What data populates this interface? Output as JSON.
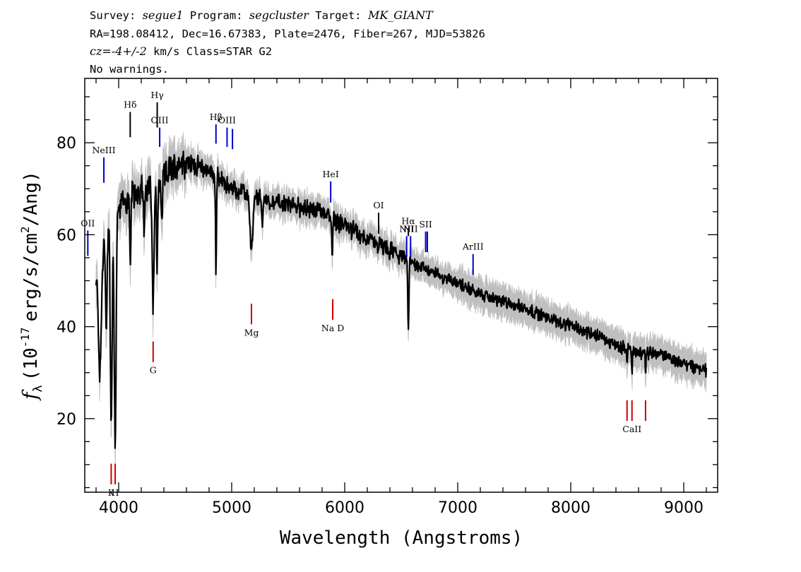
{
  "header": {
    "line1": {
      "survey_label": "Survey:",
      "survey": "segue1",
      "program_label": "Program:",
      "program": "segcluster",
      "target_label": "Target:",
      "target": "MK_GIANT"
    },
    "line2": "RA=198.08412, Dec=16.67383, Plate=2476, Fiber=267, MJD=53826",
    "line3": {
      "cz": "cz=-4+/-2",
      "rest": "km/s Class=STAR G2"
    },
    "line4": "No warnings."
  },
  "chart_data": {
    "type": "line",
    "xlabel": "Wavelength (Angstroms)",
    "ylabel": {
      "symbol": "f",
      "subscript": "λ",
      "pre": "(10",
      "exp": "-17",
      "post": "erg/s/cm",
      "exp2": "2",
      "tail": "/Ang)"
    },
    "xlim": [
      3700,
      9300
    ],
    "ylim": [
      4,
      94
    ],
    "x_ticks": [
      4000,
      5000,
      6000,
      7000,
      8000,
      9000
    ],
    "y_ticks": [
      20,
      40,
      60,
      80
    ],
    "x_tick_labels": [
      "4000",
      "5000",
      "6000",
      "7000",
      "8000",
      "9000"
    ],
    "y_tick_labels": [
      "20",
      "40",
      "60",
      "80"
    ],
    "x_minor_step": 200,
    "y_minor_step": 5,
    "spectrum_range": [
      3800,
      9200
    ],
    "spectrum_color": "#000000",
    "error_color": "#bfbfbf",
    "continuum_knots": [
      [
        3800,
        49
      ],
      [
        3850,
        56
      ],
      [
        3900,
        62
      ],
      [
        4000,
        66
      ],
      [
        4100,
        68
      ],
      [
        4200,
        70
      ],
      [
        4350,
        71
      ],
      [
        4450,
        74
      ],
      [
        4550,
        76
      ],
      [
        4700,
        75
      ],
      [
        4800,
        74
      ],
      [
        4900,
        72
      ],
      [
        5000,
        70
      ],
      [
        5200,
        68
      ],
      [
        5400,
        67
      ],
      [
        5600,
        66
      ],
      [
        5800,
        65
      ],
      [
        6000,
        62
      ],
      [
        6200,
        59
      ],
      [
        6400,
        56.5
      ],
      [
        6600,
        54
      ],
      [
        6800,
        51.5
      ],
      [
        7000,
        49.5
      ],
      [
        7200,
        47
      ],
      [
        7400,
        45.5
      ],
      [
        7600,
        44
      ],
      [
        7800,
        42
      ],
      [
        8000,
        40
      ],
      [
        8200,
        38.5
      ],
      [
        8400,
        36
      ],
      [
        8600,
        34.5
      ],
      [
        8800,
        34
      ],
      [
        9000,
        32
      ],
      [
        9200,
        30.5
      ]
    ],
    "absorption_features": [
      [
        3835,
        12,
        24
      ],
      [
        3890,
        7,
        22
      ],
      [
        3934,
        8,
        45
      ],
      [
        3969,
        8,
        50
      ],
      [
        4102,
        5,
        16
      ],
      [
        4227,
        6,
        10
      ],
      [
        4305,
        8,
        25
      ],
      [
        4340,
        5,
        20
      ],
      [
        4383,
        5,
        10
      ],
      [
        4861,
        4,
        22
      ],
      [
        5175,
        12,
        12
      ],
      [
        5270,
        5,
        5
      ],
      [
        5890,
        4,
        9
      ],
      [
        6563,
        5,
        15
      ],
      [
        8498,
        3,
        4
      ],
      [
        8542,
        3,
        6
      ],
      [
        8662,
        3,
        6
      ]
    ],
    "emission_lines": [
      {
        "label": "OII",
        "x": 3727,
        "y1": 55.4,
        "y2": 60.9,
        "color": "#0000cc"
      },
      {
        "label": "NeIII",
        "x": 3869,
        "y1": 71.3,
        "y2": 76.8,
        "color": "#0000cc"
      },
      {
        "label": "Hδ",
        "x": 4102,
        "y1": 81.2,
        "y2": 86.7,
        "color": "#000000"
      },
      {
        "label": "Hγ",
        "x": 4341,
        "y1": 83.3,
        "y2": 88.8,
        "color": "#000000"
      },
      {
        "label": "OIII",
        "x": 4363,
        "y1": 79.1,
        "y2": 83.3,
        "color": "#0000cc"
      },
      {
        "label": "Hβ",
        "x": 4861,
        "y1": 79.8,
        "y2": 84.0,
        "color": "#0000cc"
      },
      {
        "label": "OIII",
        "x": 4959,
        "y1": 79.1,
        "y2": 83.3,
        "color": "#0000cc"
      },
      {
        "label": "",
        "x": 5007,
        "y1": 78.6,
        "y2": 83.0,
        "color": "#0000cc"
      },
      {
        "label": "HeI",
        "x": 5876,
        "y1": 67.0,
        "y2": 71.6,
        "color": "#0000cc"
      },
      {
        "label": "OI",
        "x": 6300,
        "y1": 60.2,
        "y2": 64.8,
        "color": "#000000"
      },
      {
        "label": "NII",
        "x": 6548,
        "y1": 55.2,
        "y2": 59.7,
        "color": "#0000cc"
      },
      {
        "label": "Hα",
        "x": 6563,
        "y1": 59.7,
        "y2": 61.4,
        "color": "#000000"
      },
      {
        "label": "NII",
        "x": 6583,
        "y1": 55.2,
        "y2": 59.7,
        "color": "#0000cc"
      },
      {
        "label": "SII",
        "x": 6716,
        "y1": 56.2,
        "y2": 60.7,
        "color": "#0000cc"
      },
      {
        "label": "",
        "x": 6731,
        "y1": 56.2,
        "y2": 60.7,
        "color": "#0000cc"
      },
      {
        "label": "ArIII",
        "x": 7136,
        "y1": 51.3,
        "y2": 55.8,
        "color": "#0000cc"
      }
    ],
    "absorption_markers": [
      {
        "label": "K",
        "x": 3934,
        "y1": 5.7,
        "y2": 10.2,
        "color": "#cc0000"
      },
      {
        "label": "H",
        "x": 3969,
        "y1": 5.7,
        "y2": 10.2,
        "color": "#cc0000"
      },
      {
        "label": "G",
        "x": 4305,
        "y1": 32.3,
        "y2": 36.8,
        "color": "#cc0000"
      },
      {
        "label": "Mg",
        "x": 5175,
        "y1": 40.5,
        "y2": 45.0,
        "color": "#cc0000"
      },
      {
        "label": "Na D",
        "x": 5894,
        "y1": 41.5,
        "y2": 46.0,
        "color": "#cc0000"
      },
      {
        "label": "",
        "x": 8498,
        "y1": 19.5,
        "y2": 24.0,
        "color": "#cc0000"
      },
      {
        "label": "CaII",
        "x": 8542,
        "y1": 19.5,
        "y2": 24.0,
        "color": "#cc0000"
      },
      {
        "label": "",
        "x": 8662,
        "y1": 19.5,
        "y2": 24.0,
        "color": "#cc0000"
      }
    ],
    "grid": false,
    "legend": "none"
  }
}
